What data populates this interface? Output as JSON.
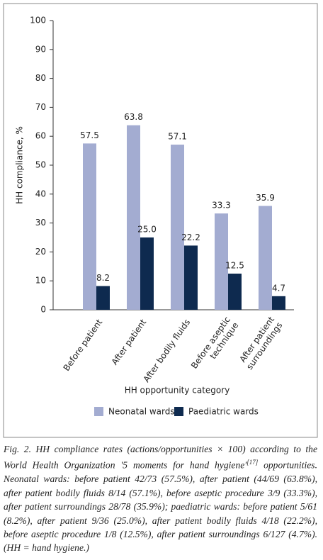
{
  "chart_data": {
    "type": "bar",
    "ylabel": "HH compliance, %",
    "xlabel": "HH opportunity category",
    "categories": [
      "Before patient",
      "After patient",
      "After bodily fluids",
      "Before aseptic\ntechnique",
      "After patient\nsurroundings"
    ],
    "series": [
      {
        "name": "Neonatal wards",
        "color": "#a3acd1",
        "values": [
          57.5,
          63.8,
          57.1,
          33.3,
          35.9
        ],
        "value_labels": [
          "57.5",
          "63.8",
          "57.1",
          "33.3",
          "35.9"
        ]
      },
      {
        "name": "Paediatric wards",
        "color": "#0e2a4f",
        "values": [
          8.2,
          25.0,
          22.2,
          12.5,
          4.7
        ],
        "value_labels": [
          "8.2",
          "25.0",
          "22.2",
          "12.5",
          "4.7"
        ]
      }
    ],
    "ylim": [
      0,
      100
    ],
    "yticks": [
      0,
      10,
      20,
      30,
      40,
      50,
      60,
      70,
      80,
      90,
      100
    ],
    "legend": "bottom"
  },
  "caption": {
    "before": "Fig. 2. HH compliance rates (actions/opportunities × 100) according to the World Health Organization '5 moments for hand hygiene'",
    "sup": "[17]",
    "after": " opportunities. Neonatal wards: before patient 42/73 (57.5%), after patient (44/69 (63.8%), after patient bodily fluids 8/14 (57.1%), before aseptic procedure 3/9 (33.3%), after patient surroundings 28/78 (35.9%); paediatric wards: before patient 5/61 (8.2%), after patient 9/36 (25.0%), after patient bodily fluids 4/18 (22.2%), before aseptic procedure 1/8 (12.5%), after patient surroundings 6/127 (4.7%). (HH = hand hygiene.)"
  }
}
